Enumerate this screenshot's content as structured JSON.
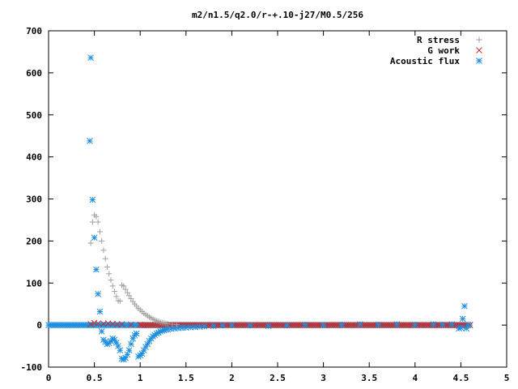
{
  "chart_data": {
    "type": "scatter",
    "title": "m2/n1.5/q2.0/r-+.10-j27/M0.5/256",
    "xlabel": "",
    "ylabel": "",
    "xlim": [
      0,
      5
    ],
    "ylim": [
      -100,
      700
    ],
    "xticks": [
      0,
      0.5,
      1,
      1.5,
      2,
      2.5,
      3,
      3.5,
      4,
      4.5,
      5
    ],
    "xtick_labels": [
      "0",
      "0.5",
      "1",
      "1.5",
      "2",
      "2.5",
      "3",
      "3.5",
      "4",
      "4.5",
      "5"
    ],
    "yticks": [
      -100,
      0,
      100,
      200,
      300,
      400,
      500,
      600,
      700
    ],
    "ytick_labels": [
      "-100",
      "0",
      "100",
      "200",
      "300",
      "400",
      "500",
      "600",
      "700"
    ],
    "grid": false,
    "legend_position": "top-right",
    "series": [
      {
        "name": "R stress",
        "marker": "plus",
        "color": "#a0a0a0",
        "points": [
          [
            0.46,
            195
          ],
          [
            0.48,
            245
          ],
          [
            0.5,
            262
          ],
          [
            0.52,
            258
          ],
          [
            0.54,
            245
          ],
          [
            0.56,
            222
          ],
          [
            0.58,
            200
          ],
          [
            0.6,
            178
          ],
          [
            0.62,
            158
          ],
          [
            0.64,
            138
          ],
          [
            0.66,
            122
          ],
          [
            0.68,
            107
          ],
          [
            0.7,
            93
          ],
          [
            0.72,
            80
          ],
          [
            0.74,
            68
          ],
          [
            0.76,
            58
          ],
          [
            0.78,
            57
          ],
          [
            0.8,
            95
          ],
          [
            0.82,
            93
          ],
          [
            0.84,
            85
          ],
          [
            0.86,
            77
          ],
          [
            0.88,
            70
          ],
          [
            0.9,
            63
          ],
          [
            0.92,
            56
          ],
          [
            0.94,
            50
          ],
          [
            0.96,
            45
          ],
          [
            0.98,
            40
          ],
          [
            1.0,
            36
          ],
          [
            1.02,
            32
          ],
          [
            1.04,
            28
          ],
          [
            1.06,
            25
          ],
          [
            1.08,
            22
          ],
          [
            1.1,
            19
          ],
          [
            1.12,
            17
          ],
          [
            1.14,
            14
          ],
          [
            1.16,
            12
          ],
          [
            1.18,
            10
          ],
          [
            1.2,
            9
          ],
          [
            1.22,
            7
          ],
          [
            1.24,
            6
          ],
          [
            1.26,
            5
          ],
          [
            1.28,
            4
          ],
          [
            1.3,
            3
          ],
          [
            1.35,
            2
          ],
          [
            1.4,
            1
          ]
        ]
      },
      {
        "name": "G work",
        "marker": "cross",
        "color": "#c03030",
        "points": [
          [
            0.46,
            2
          ],
          [
            0.5,
            5
          ],
          [
            0.54,
            4
          ],
          [
            0.6,
            3
          ],
          [
            0.65,
            4
          ],
          [
            0.7,
            3
          ],
          [
            0.75,
            2
          ],
          [
            0.8,
            2
          ],
          [
            0.9,
            1
          ],
          [
            1.0,
            1
          ]
        ]
      },
      {
        "name": "Acoustic flux",
        "marker": "asterisk",
        "color": "#1e8fe0",
        "points": [
          [
            0.45,
            438
          ],
          [
            0.46,
            636
          ],
          [
            0.48,
            298
          ],
          [
            0.5,
            208
          ],
          [
            0.52,
            132
          ],
          [
            0.54,
            74
          ],
          [
            0.56,
            32
          ],
          [
            0.58,
            -15
          ],
          [
            0.6,
            -35
          ],
          [
            0.62,
            -40
          ],
          [
            0.64,
            -45
          ],
          [
            0.66,
            -43
          ],
          [
            0.68,
            -38
          ],
          [
            0.7,
            -32
          ],
          [
            0.72,
            -35
          ],
          [
            0.74,
            -42
          ],
          [
            0.76,
            -50
          ],
          [
            0.78,
            -60
          ],
          [
            0.8,
            -80
          ],
          [
            0.82,
            -82
          ],
          [
            0.84,
            -78
          ],
          [
            0.86,
            -70
          ],
          [
            0.88,
            -60
          ],
          [
            0.9,
            -45
          ],
          [
            0.92,
            -32
          ],
          [
            0.94,
            -24
          ],
          [
            0.96,
            -20
          ],
          [
            0.98,
            -75
          ],
          [
            1.0,
            -72
          ],
          [
            1.02,
            -68
          ],
          [
            1.04,
            -60
          ],
          [
            1.06,
            -52
          ],
          [
            1.08,
            -45
          ],
          [
            1.1,
            -38
          ],
          [
            1.12,
            -32
          ],
          [
            1.14,
            -27
          ],
          [
            1.16,
            -24
          ],
          [
            1.18,
            -20
          ],
          [
            1.2,
            -18
          ],
          [
            1.22,
            -15
          ],
          [
            1.24,
            -13
          ],
          [
            1.26,
            -12
          ],
          [
            1.28,
            -11
          ],
          [
            1.3,
            -10
          ],
          [
            1.34,
            -9
          ],
          [
            1.38,
            -8
          ],
          [
            1.42,
            -7
          ],
          [
            1.46,
            -6
          ],
          [
            1.5,
            -6
          ],
          [
            1.55,
            -5
          ],
          [
            1.6,
            -5
          ],
          [
            1.65,
            -4
          ],
          [
            1.7,
            -3
          ],
          [
            1.8,
            -2
          ],
          [
            1.9,
            -1
          ],
          [
            2.0,
            0
          ],
          [
            2.2,
            -1
          ],
          [
            2.4,
            -2
          ],
          [
            2.6,
            -1
          ],
          [
            2.8,
            1
          ],
          [
            3.0,
            0
          ],
          [
            3.2,
            1
          ],
          [
            3.4,
            2
          ],
          [
            3.6,
            1
          ],
          [
            3.8,
            2
          ],
          [
            4.0,
            1
          ],
          [
            4.2,
            2
          ],
          [
            4.3,
            1
          ],
          [
            4.4,
            2
          ],
          [
            4.48,
            -8
          ],
          [
            4.5,
            -6
          ],
          [
            4.52,
            15
          ],
          [
            4.54,
            45
          ],
          [
            4.56,
            -8
          ],
          [
            4.58,
            0
          ]
        ]
      }
    ],
    "baseline_series": [
      {
        "series_index": 2,
        "x_start": 0.0,
        "x_end": 4.6,
        "value": 0
      },
      {
        "series_index": 1,
        "x_start": 1.0,
        "x_end": 4.6,
        "value": 0
      }
    ]
  }
}
